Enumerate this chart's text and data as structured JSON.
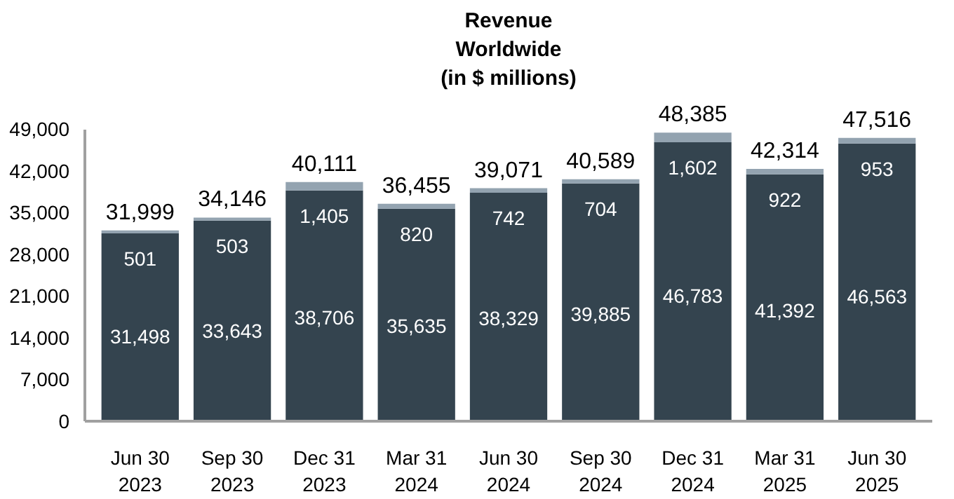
{
  "chart_data": {
    "type": "bar",
    "title": "Revenue\nWorldwide\n(in $ millions)",
    "categories": [
      "Jun 30\n2023",
      "Sep 30\n2023",
      "Dec 31\n2023",
      "Mar 31\n2024",
      "Jun 30\n2024",
      "Sep 30\n2024",
      "Dec 31\n2024",
      "Mar 31\n2025",
      "Jun 30\n2025"
    ],
    "stacked": true,
    "series": [
      {
        "color": "#34444f",
        "values": [
          31498,
          33643,
          38706,
          35635,
          38329,
          39885,
          46783,
          41392,
          46563
        ],
        "value_labels": [
          "31,498",
          "33,643",
          "38,706",
          "35,635",
          "38,329",
          "39,885",
          "46,783",
          "41,392",
          "46,563"
        ]
      },
      {
        "color": "#93a3b0",
        "values": [
          501,
          503,
          1405,
          820,
          742,
          704,
          1602,
          922,
          953
        ],
        "value_labels": [
          "501",
          "503",
          "1,405",
          "820",
          "742",
          "704",
          "1,602",
          "922",
          "953"
        ]
      }
    ],
    "totals": [
      "31,999",
      "34,146",
      "40,111",
      "36,455",
      "39,071",
      "40,589",
      "48,385",
      "42,314",
      "47,516"
    ],
    "ylim": [
      0,
      49000
    ],
    "yticks": [
      {
        "value": 0,
        "label": "0"
      },
      {
        "value": 7000,
        "label": "7,000"
      },
      {
        "value": 14000,
        "label": "14,000"
      },
      {
        "value": 21000,
        "label": "21,000"
      },
      {
        "value": 28000,
        "label": "28,000"
      },
      {
        "value": 35000,
        "label": "35,000"
      },
      {
        "value": 42000,
        "label": "42,000"
      },
      {
        "value": 49000,
        "label": "49,000"
      }
    ],
    "grid": false
  }
}
